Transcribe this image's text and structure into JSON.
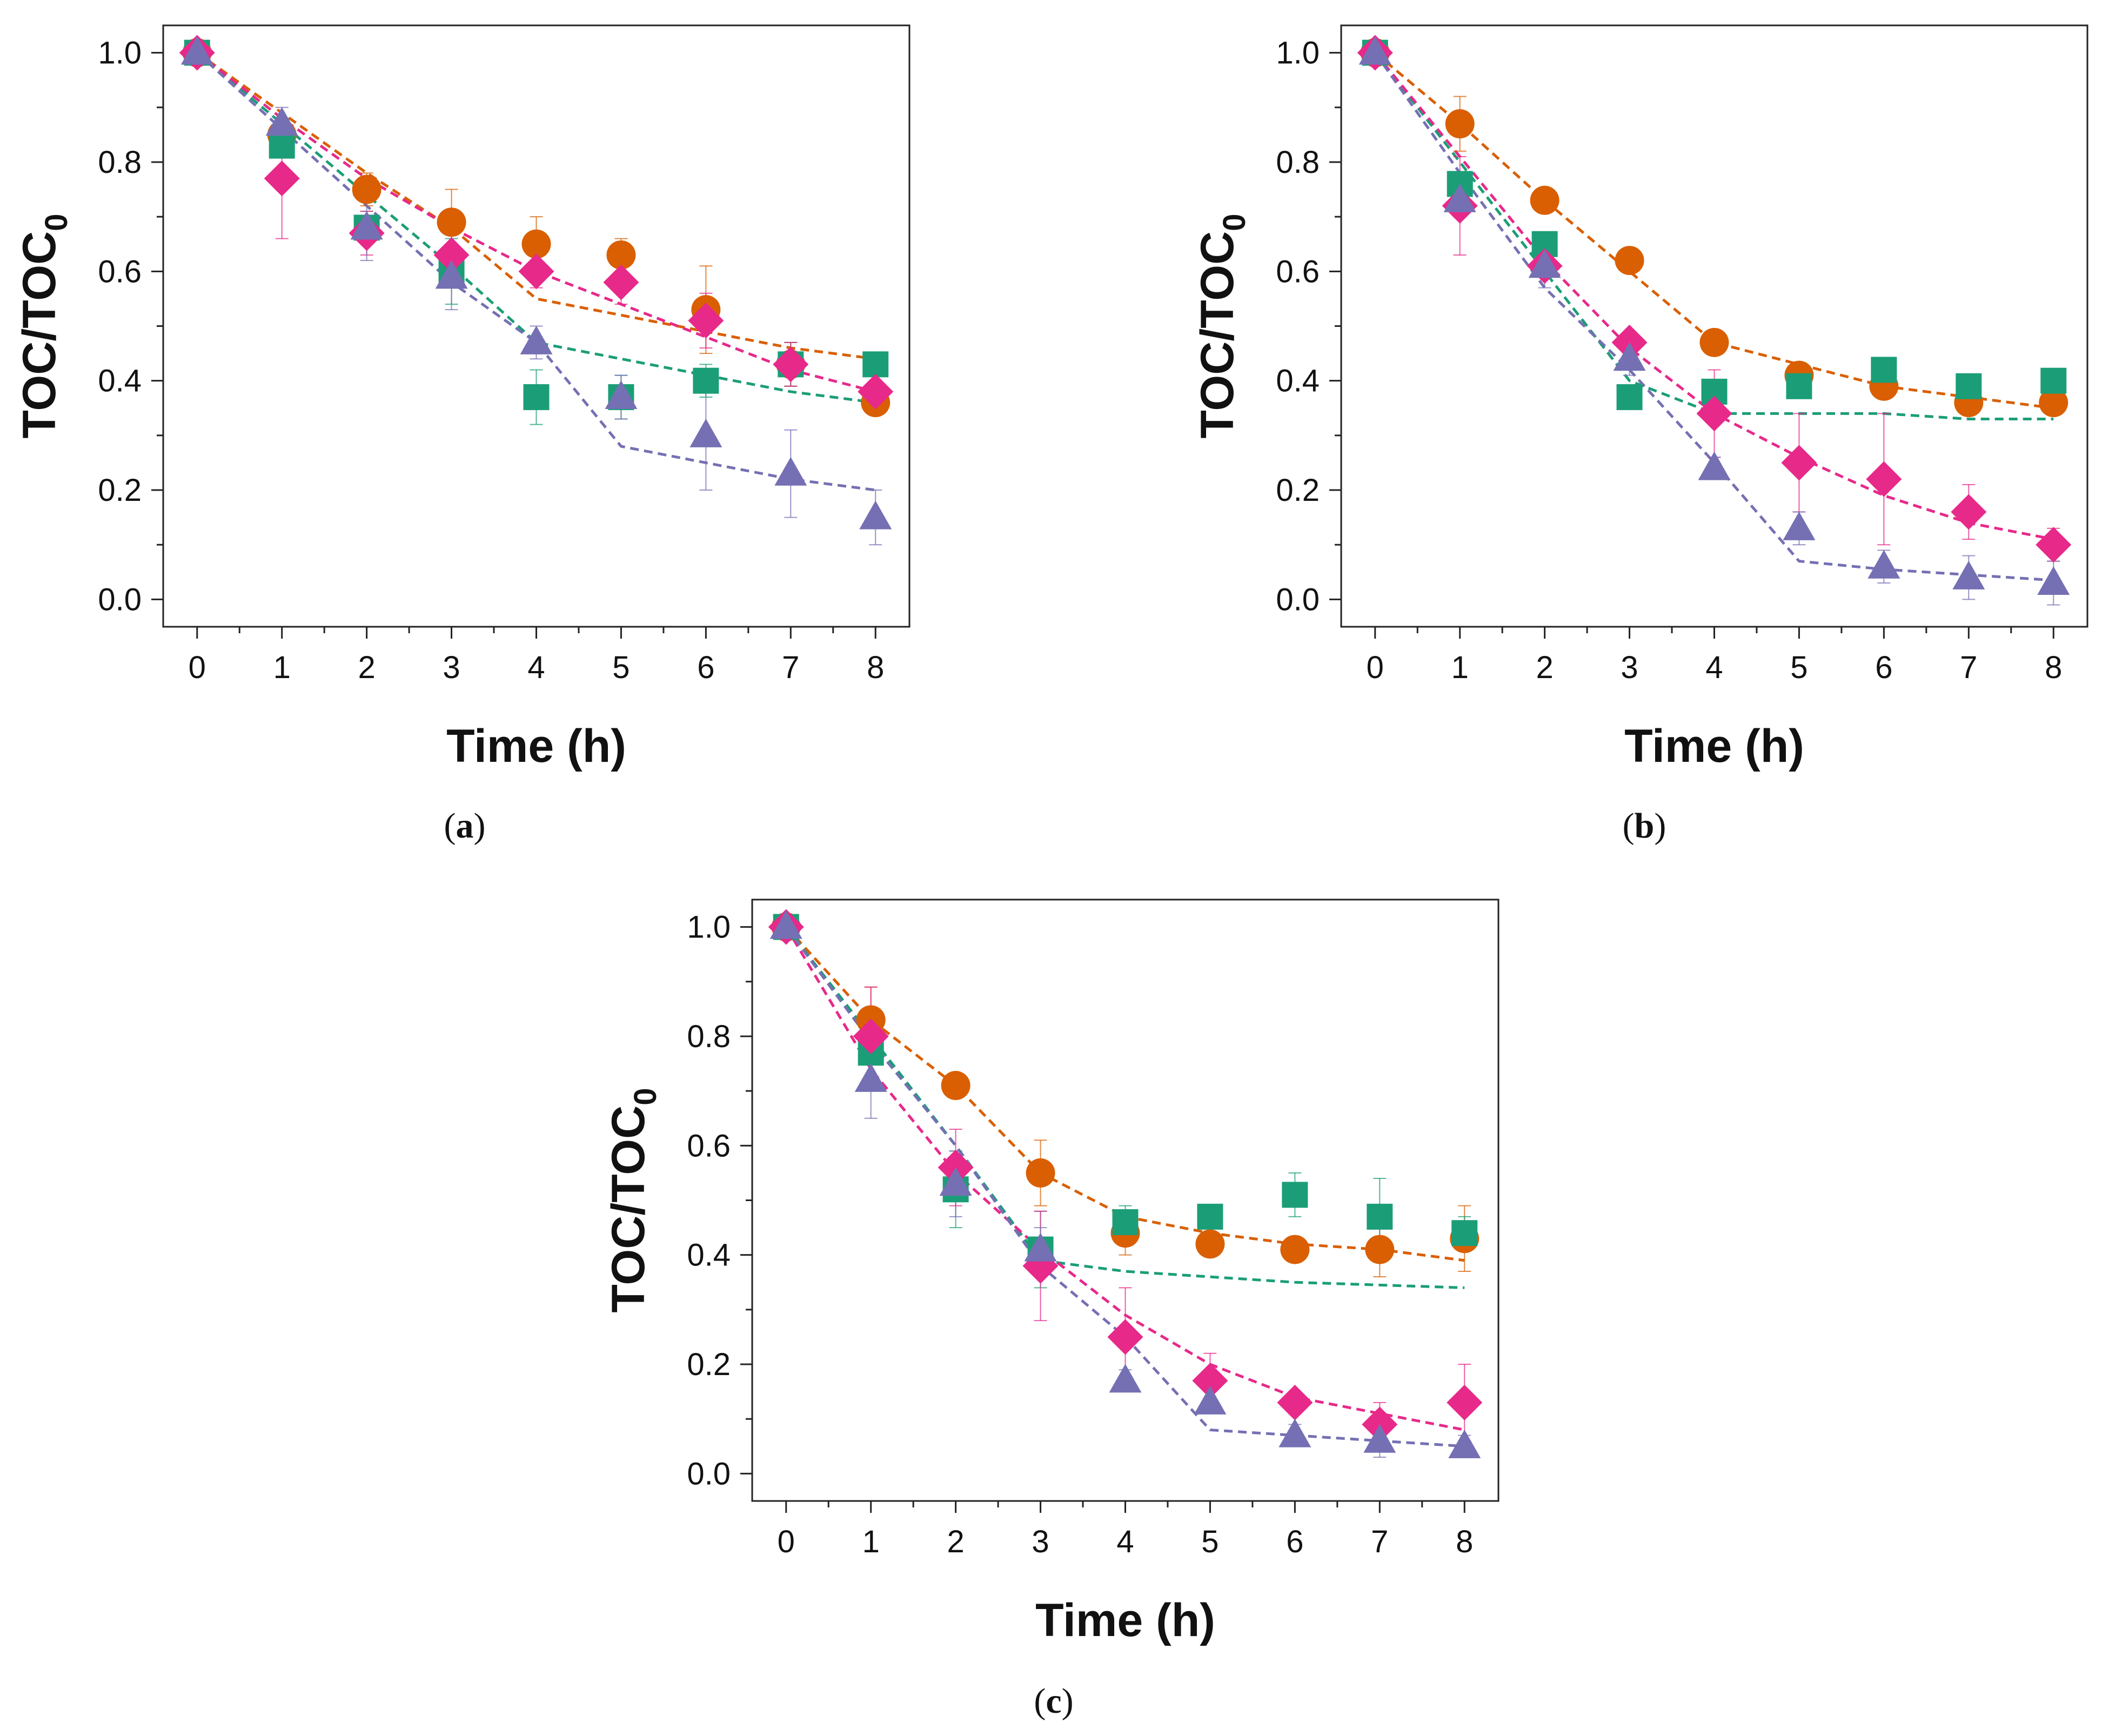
{
  "chart_data": [
    {
      "type": "scatter",
      "panel_id": "a",
      "caption_letter": "a",
      "xlabel": "Time (h)",
      "ylabel_main": "TOC/TOC",
      "ylabel_sub": "0",
      "xlim": [
        -0.4,
        8.4
      ],
      "ylim": [
        -0.05,
        1.05
      ],
      "xticks": [
        0,
        1,
        2,
        3,
        4,
        5,
        6,
        7,
        8
      ],
      "yticks": [
        "0.0",
        "0.2",
        "0.4",
        "0.6",
        "0.8",
        "1.0"
      ],
      "series": [
        {
          "name": "circle",
          "marker": "circle",
          "color": "#d95f02",
          "x": [
            0,
            1,
            2,
            3,
            4,
            5,
            6,
            7,
            8
          ],
          "y": [
            1.0,
            0.85,
            0.75,
            0.69,
            0.65,
            0.63,
            0.53,
            0.43,
            0.36
          ],
          "err": [
            0,
            0.03,
            0.03,
            0.06,
            0.05,
            0.03,
            0.08,
            0.04,
            0.02
          ],
          "fit": [
            1.0,
            0.89,
            0.78,
            0.68,
            0.55,
            0.52,
            0.49,
            0.46,
            0.44
          ]
        },
        {
          "name": "square",
          "marker": "square",
          "color": "#1b9e77",
          "x": [
            0,
            1,
            2,
            3,
            4,
            5,
            6,
            7,
            8
          ],
          "y": [
            1.0,
            0.83,
            0.68,
            0.6,
            0.37,
            0.37,
            0.4,
            0.43,
            0.43
          ],
          "err": [
            0,
            0.02,
            0.03,
            0.06,
            0.05,
            0.04,
            0.03,
            0.04,
            0.02
          ],
          "fit": [
            1.0,
            0.87,
            0.74,
            0.61,
            0.47,
            0.44,
            0.41,
            0.38,
            0.36
          ]
        },
        {
          "name": "diamond",
          "marker": "diamond",
          "color": "#e7298a",
          "x": [
            0,
            1,
            2,
            3,
            4,
            5,
            6,
            7,
            8
          ],
          "y": [
            1.0,
            0.77,
            0.67,
            0.63,
            0.6,
            0.58,
            0.51,
            0.43,
            0.38
          ],
          "err": [
            0,
            0.11,
            0.04,
            0.05,
            0.03,
            0.04,
            0.05,
            0.04,
            0.03
          ],
          "fit": [
            1.0,
            0.88,
            0.77,
            0.68,
            0.6,
            0.54,
            0.48,
            0.42,
            0.38
          ]
        },
        {
          "name": "triangle",
          "marker": "triangle",
          "color": "#7570b3",
          "x": [
            0,
            1,
            2,
            3,
            4,
            5,
            6,
            7,
            8
          ],
          "y": [
            1.0,
            0.87,
            0.68,
            0.59,
            0.47,
            0.37,
            0.3,
            0.23,
            0.15
          ],
          "err": [
            0,
            0.03,
            0.06,
            0.06,
            0.03,
            0.04,
            0.1,
            0.08,
            0.05
          ],
          "fit": [
            1.0,
            0.86,
            0.72,
            0.58,
            0.47,
            0.28,
            0.25,
            0.22,
            0.2
          ]
        }
      ]
    },
    {
      "type": "scatter",
      "panel_id": "b",
      "caption_letter": "b",
      "xlabel": "Time (h)",
      "ylabel_main": "TOC/TOC",
      "ylabel_sub": "0",
      "xlim": [
        -0.4,
        8.4
      ],
      "ylim": [
        -0.05,
        1.05
      ],
      "xticks": [
        0,
        1,
        2,
        3,
        4,
        5,
        6,
        7,
        8
      ],
      "yticks": [
        "0.0",
        "0.2",
        "0.4",
        "0.6",
        "0.8",
        "1.0"
      ],
      "series": [
        {
          "name": "circle",
          "marker": "circle",
          "color": "#d95f02",
          "x": [
            0,
            1,
            2,
            3,
            4,
            5,
            6,
            7,
            8
          ],
          "y": [
            1.0,
            0.87,
            0.73,
            0.62,
            0.47,
            0.41,
            0.39,
            0.36,
            0.36
          ],
          "err": [
            0,
            0.05,
            0.01,
            0.01,
            0.01,
            0.01,
            0.01,
            0.01,
            0.01
          ],
          "fit": [
            1.0,
            0.87,
            0.73,
            0.6,
            0.47,
            0.43,
            0.39,
            0.37,
            0.35
          ]
        },
        {
          "name": "square",
          "marker": "square",
          "color": "#1b9e77",
          "x": [
            0,
            1,
            2,
            3,
            4,
            5,
            6,
            7,
            8
          ],
          "y": [
            1.0,
            0.76,
            0.65,
            0.37,
            0.38,
            0.39,
            0.42,
            0.39,
            0.4
          ],
          "err": [
            0,
            0.02,
            0.02,
            0.02,
            0.02,
            0.02,
            0.02,
            0.02,
            0.02
          ],
          "fit": [
            1.0,
            0.8,
            0.6,
            0.4,
            0.34,
            0.34,
            0.34,
            0.33,
            0.33
          ]
        },
        {
          "name": "diamond",
          "marker": "diamond",
          "color": "#e7298a",
          "x": [
            0,
            1,
            2,
            3,
            4,
            5,
            6,
            7,
            8
          ],
          "y": [
            1.0,
            0.72,
            0.61,
            0.47,
            0.34,
            0.25,
            0.22,
            0.16,
            0.1
          ],
          "err": [
            0,
            0.09,
            0.02,
            0.02,
            0.08,
            0.09,
            0.12,
            0.05,
            0.03
          ],
          "fit": [
            1.0,
            0.81,
            0.62,
            0.46,
            0.34,
            0.26,
            0.19,
            0.14,
            0.11
          ]
        },
        {
          "name": "triangle",
          "marker": "triangle",
          "color": "#7570b3",
          "x": [
            0,
            1,
            2,
            3,
            4,
            5,
            6,
            7,
            8
          ],
          "y": [
            1.0,
            0.73,
            0.61,
            0.44,
            0.24,
            0.13,
            0.06,
            0.04,
            0.03
          ],
          "err": [
            0,
            0.03,
            0.04,
            0.03,
            0.02,
            0.03,
            0.03,
            0.04,
            0.04
          ],
          "fit": [
            1.0,
            0.78,
            0.57,
            0.42,
            0.25,
            0.07,
            0.055,
            0.045,
            0.035
          ]
        }
      ]
    },
    {
      "type": "scatter",
      "panel_id": "c",
      "caption_letter": "c",
      "xlabel": "Time (h)",
      "ylabel_main": "TOC/TOC",
      "ylabel_sub": "0",
      "xlim": [
        -0.4,
        8.4
      ],
      "ylim": [
        -0.05,
        1.05
      ],
      "xticks": [
        0,
        1,
        2,
        3,
        4,
        5,
        6,
        7,
        8
      ],
      "yticks": [
        "0.0",
        "0.2",
        "0.4",
        "0.6",
        "0.8",
        "1.0"
      ],
      "series": [
        {
          "name": "circle",
          "marker": "circle",
          "color": "#d95f02",
          "x": [
            0,
            1,
            2,
            3,
            4,
            5,
            6,
            7,
            8
          ],
          "y": [
            1.0,
            0.83,
            0.71,
            0.55,
            0.44,
            0.42,
            0.41,
            0.41,
            0.43
          ],
          "err": [
            0,
            0.06,
            0.01,
            0.06,
            0.04,
            0.01,
            0.01,
            0.05,
            0.06
          ],
          "fit": [
            1.0,
            0.83,
            0.71,
            0.55,
            0.47,
            0.44,
            0.42,
            0.41,
            0.39
          ]
        },
        {
          "name": "square",
          "marker": "square",
          "color": "#1b9e77",
          "x": [
            0,
            1,
            2,
            3,
            4,
            5,
            6,
            7,
            8
          ],
          "y": [
            1.0,
            0.77,
            0.52,
            0.41,
            0.46,
            0.47,
            0.51,
            0.47,
            0.44
          ],
          "err": [
            0,
            0.02,
            0.07,
            0.07,
            0.03,
            0.01,
            0.04,
            0.07,
            0.03
          ],
          "fit": [
            1.0,
            0.8,
            0.6,
            0.39,
            0.37,
            0.36,
            0.35,
            0.345,
            0.34
          ]
        },
        {
          "name": "diamond",
          "marker": "diamond",
          "color": "#e7298a",
          "x": [
            0,
            1,
            2,
            3,
            4,
            5,
            6,
            7,
            8
          ],
          "y": [
            1.0,
            0.8,
            0.56,
            0.38,
            0.25,
            0.17,
            0.13,
            0.09,
            0.13
          ],
          "err": [
            0,
            0.09,
            0.07,
            0.1,
            0.09,
            0.05,
            0.02,
            0.04,
            0.07
          ],
          "fit": [
            1.0,
            0.74,
            0.55,
            0.41,
            0.29,
            0.2,
            0.14,
            0.11,
            0.08
          ]
        },
        {
          "name": "triangle",
          "marker": "triangle",
          "color": "#7570b3",
          "x": [
            0,
            1,
            2,
            3,
            4,
            5,
            6,
            7,
            8
          ],
          "y": [
            1.0,
            0.72,
            0.53,
            0.41,
            0.17,
            0.13,
            0.07,
            0.06,
            0.05
          ],
          "err": [
            0,
            0.07,
            0.06,
            0.04,
            0.02,
            0.02,
            0.02,
            0.03,
            0.02
          ],
          "fit": [
            1.0,
            0.79,
            0.6,
            0.38,
            0.25,
            0.08,
            0.07,
            0.06,
            0.05
          ]
        }
      ]
    }
  ]
}
